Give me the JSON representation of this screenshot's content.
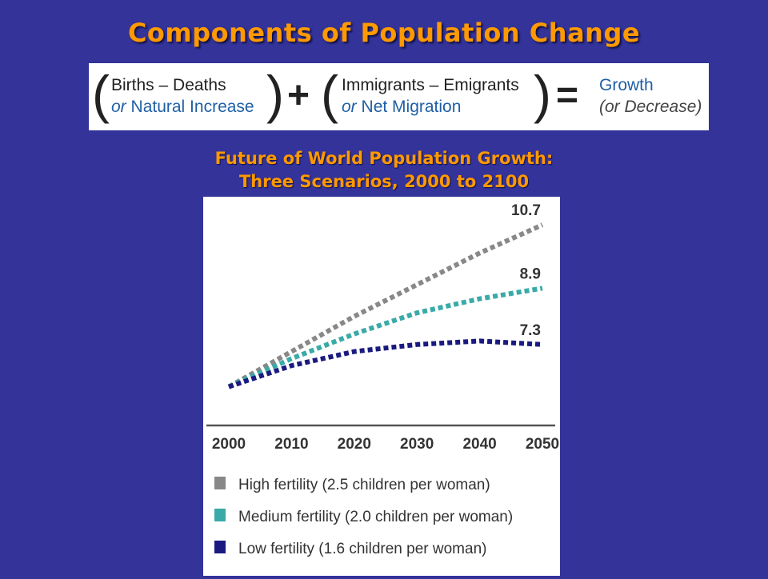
{
  "slide": {
    "title": "Components of Population Change"
  },
  "equation": {
    "term1_main": "Births – Deaths",
    "term1_or": "or",
    "term1_alt": "Natural Increase",
    "plus": "+",
    "term2_main": "Immigrants – Emigrants",
    "term2_or": "or",
    "term2_alt": "Net Migration",
    "equals": "=",
    "result_main": "Growth",
    "result_sub": "(or Decrease)"
  },
  "chart_title": {
    "line1": "Future of World Population Growth:",
    "line2": "Three Scenarios, 2000 to 2100"
  },
  "colors": {
    "background": "#333399",
    "title": "#ff9900",
    "high": "#888888",
    "medium": "#3aaaa8",
    "low": "#1a1a80"
  },
  "chart_data": {
    "type": "line",
    "x": [
      2000,
      2010,
      2020,
      2030,
      2040,
      2050
    ],
    "xlim": [
      2000,
      2050
    ],
    "ylim": [
      5.0,
      11.0
    ],
    "grid": false,
    "legend_position": "bottom",
    "series": [
      {
        "name": "High fertility (2.5 children per woman)",
        "values": [
          6.1,
          7.1,
          8.1,
          9.0,
          9.9,
          10.7
        ],
        "end_label": "10.7",
        "color": "#888888",
        "style": "dotted"
      },
      {
        "name": "Medium fertility (2.0 children per woman)",
        "values": [
          6.1,
          6.9,
          7.6,
          8.2,
          8.6,
          8.9
        ],
        "end_label": "8.9",
        "color": "#3aaaa8",
        "style": "dotted"
      },
      {
        "name": "Low fertility (1.6 children per woman)",
        "values": [
          6.1,
          6.7,
          7.1,
          7.3,
          7.4,
          7.3
        ],
        "end_label": "7.3",
        "color": "#1a1a80",
        "style": "dotted"
      }
    ]
  }
}
